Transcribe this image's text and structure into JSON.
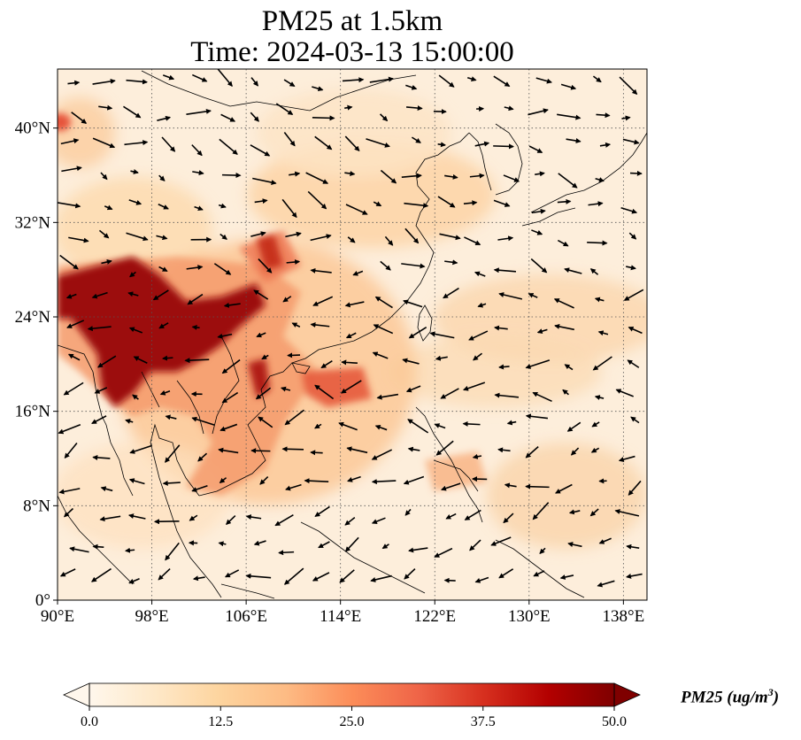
{
  "title_line1": "PM25 at 1.5km",
  "title_line2": "Time: 2024-03-13 15:00:00",
  "map": {
    "extent": {
      "lon": [
        90,
        140
      ],
      "lat": [
        0,
        45
      ]
    },
    "lon_ticks": [
      {
        "value": 90,
        "label": "90°E"
      },
      {
        "value": 98,
        "label": "98°E"
      },
      {
        "value": 106,
        "label": "106°E"
      },
      {
        "value": 114,
        "label": "114°E"
      },
      {
        "value": 122,
        "label": "122°E"
      },
      {
        "value": 130,
        "label": "130°E"
      },
      {
        "value": 138,
        "label": "138°E"
      }
    ],
    "lat_ticks": [
      {
        "value": 0,
        "label": "0°"
      },
      {
        "value": 8,
        "label": "8°N"
      },
      {
        "value": 16,
        "label": "16°N"
      },
      {
        "value": 24,
        "label": "24°N"
      },
      {
        "value": 32,
        "label": "32°N"
      },
      {
        "value": 40,
        "label": "40°N"
      }
    ],
    "gridlines": true,
    "gridline_style": "dotted",
    "wind_vectors_shown": true
  },
  "colorbar": {
    "label": "PM25 (ug/m",
    "label_sup": "3",
    "label_close": ")",
    "colormap": "OrRd",
    "min": 0,
    "max": 50,
    "extend": "both",
    "colors": [
      "#fff7ec",
      "#fee8c8",
      "#fdd49e",
      "#fdbb84",
      "#fc8d59",
      "#ef6548",
      "#d7301f",
      "#b30000",
      "#7f0000"
    ],
    "ticks": [
      {
        "value": 0,
        "label": "0.0"
      },
      {
        "value": 12.5,
        "label": "12.5"
      },
      {
        "value": 25,
        "label": "25.0"
      },
      {
        "value": 37.5,
        "label": "37.5"
      },
      {
        "value": 50,
        "label": "50.0"
      }
    ]
  }
}
